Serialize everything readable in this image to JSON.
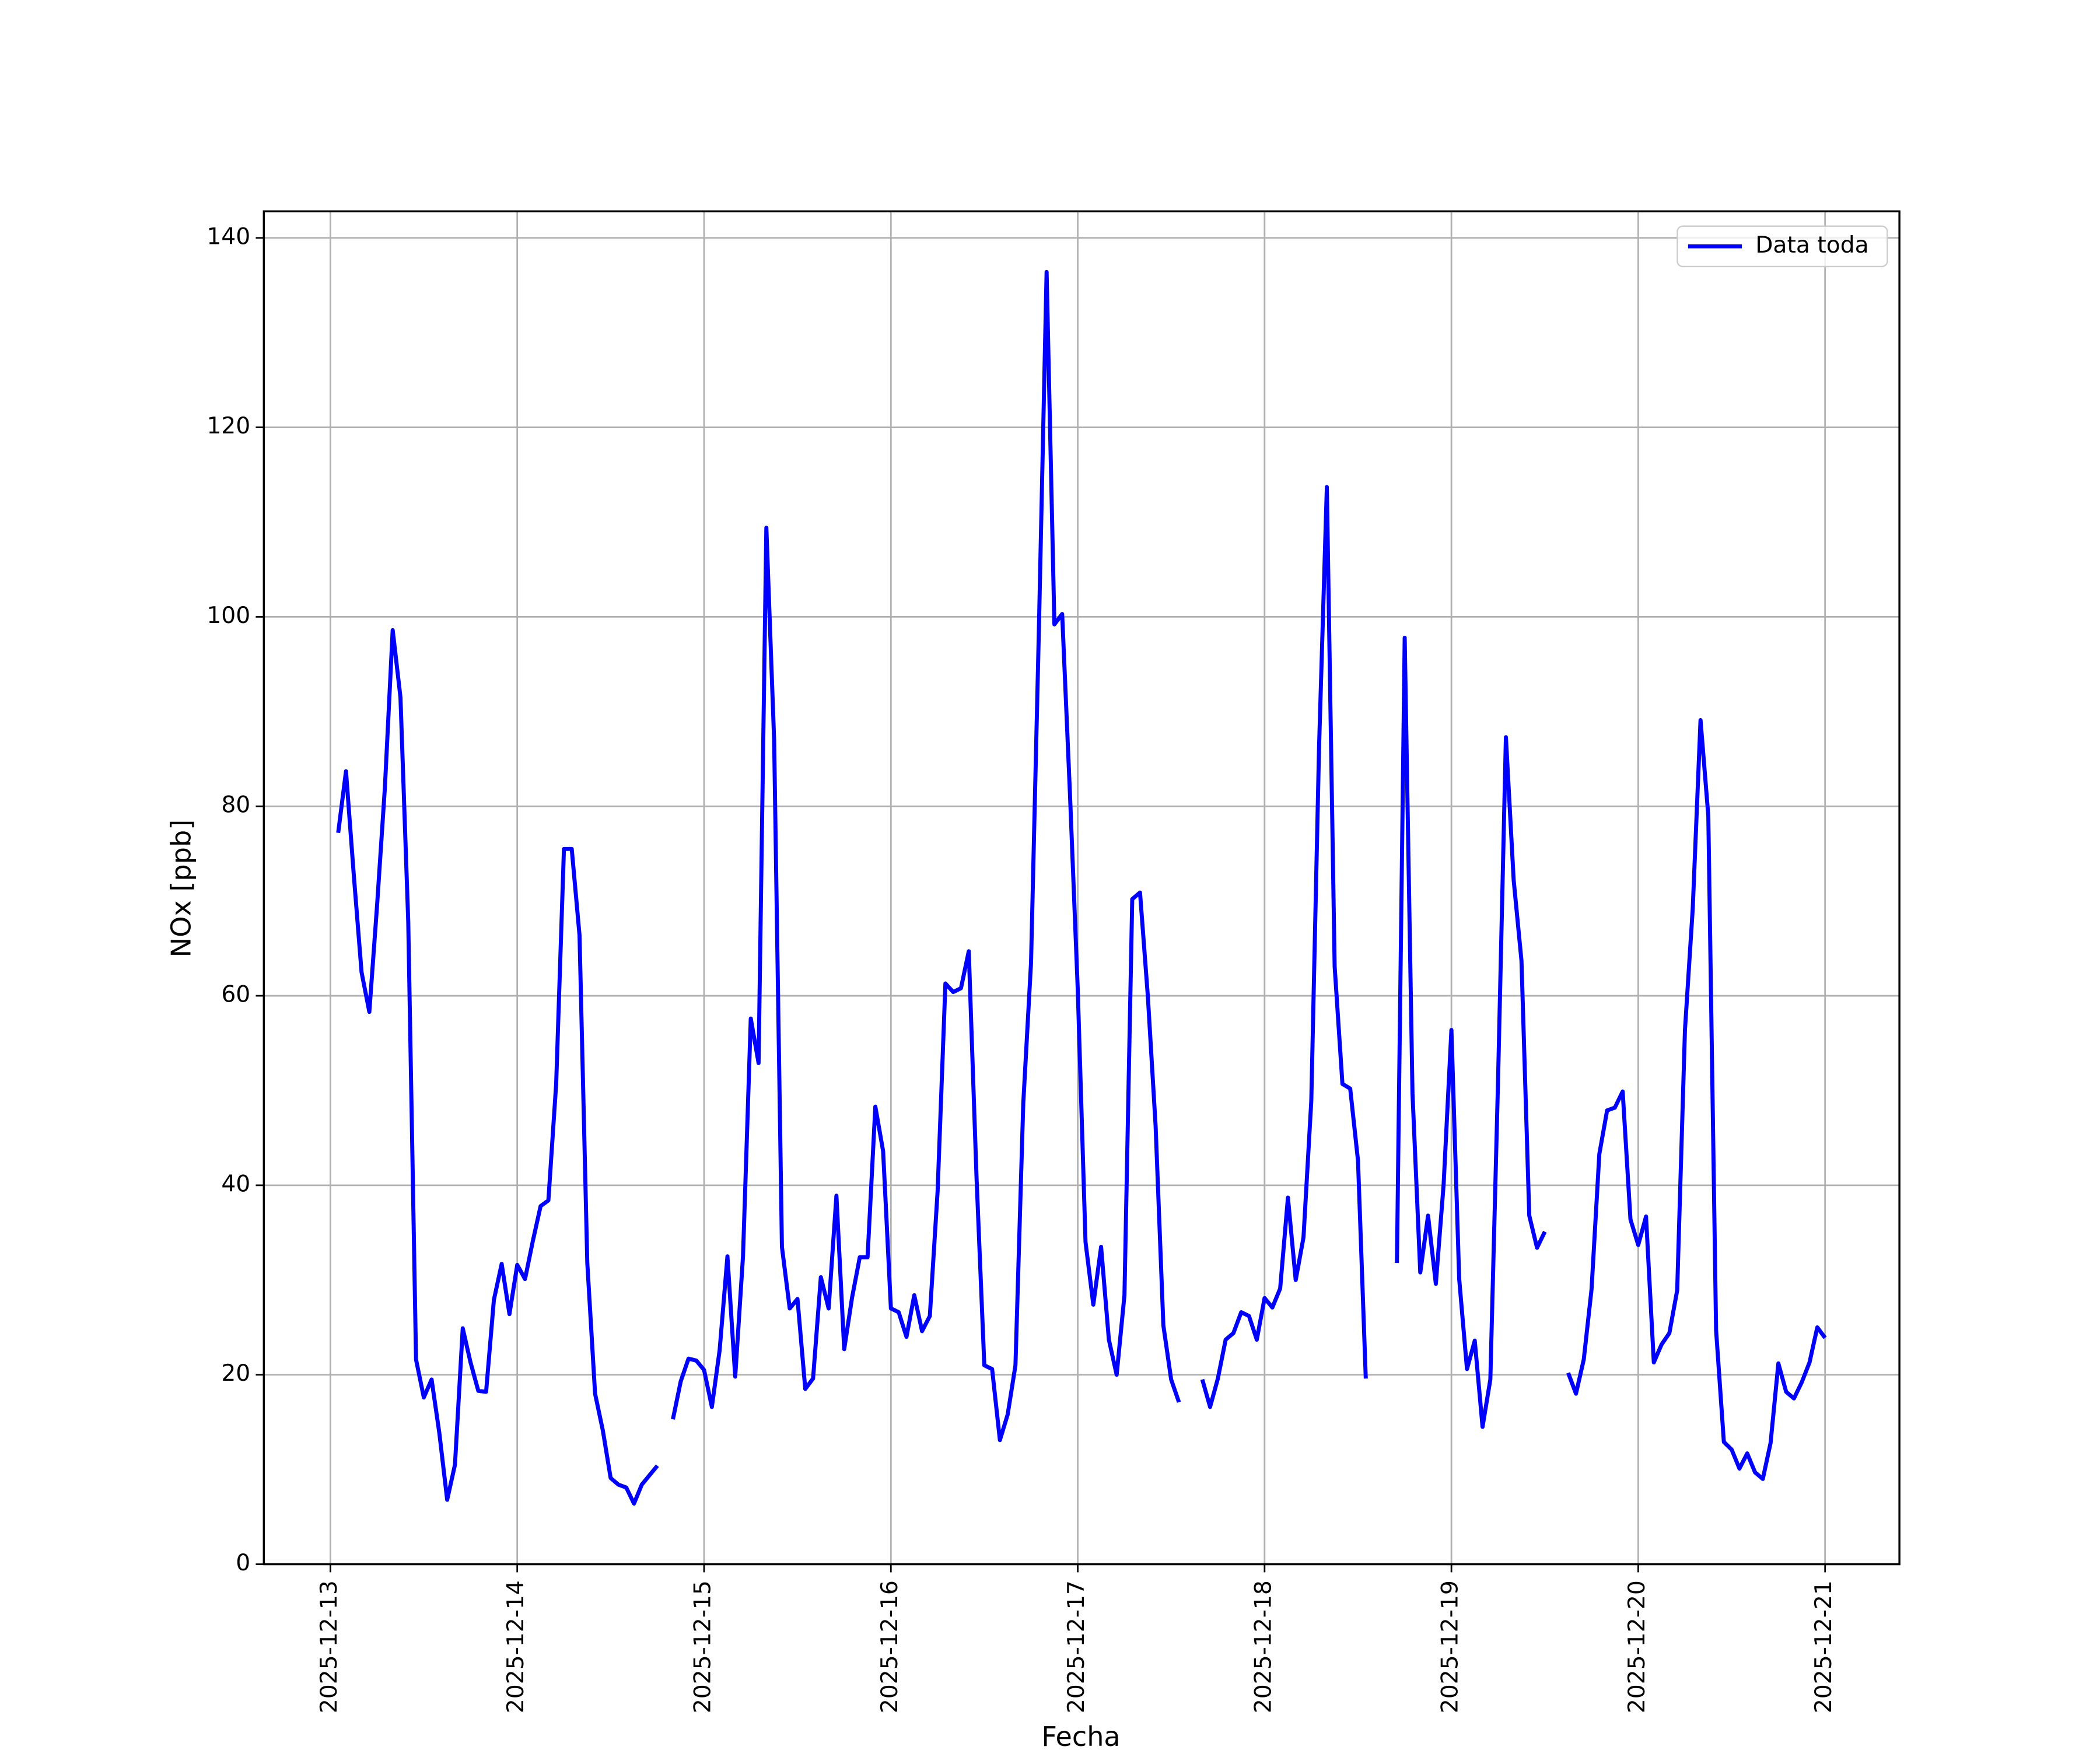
{
  "chart_data": {
    "type": "line",
    "xlabel": "Fecha",
    "ylabel": "NOx [ppb]",
    "x": [
      "2025-12-13 01:00",
      "2025-12-13 02:00",
      "2025-12-13 03:00",
      "2025-12-13 04:00",
      "2025-12-13 05:00",
      "2025-12-13 06:00",
      "2025-12-13 07:00",
      "2025-12-13 08:00",
      "2025-12-13 09:00",
      "2025-12-13 10:00",
      "2025-12-13 11:00",
      "2025-12-13 12:00",
      "2025-12-13 13:00",
      "2025-12-13 14:00",
      "2025-12-13 15:00",
      "2025-12-13 16:00",
      "2025-12-13 17:00",
      "2025-12-13 18:00",
      "2025-12-13 19:00",
      "2025-12-13 20:00",
      "2025-12-13 21:00",
      "2025-12-13 22:00",
      "2025-12-13 23:00",
      "2025-12-14 00:00",
      "2025-12-14 01:00",
      "2025-12-14 02:00",
      "2025-12-14 03:00",
      "2025-12-14 04:00",
      "2025-12-14 05:00",
      "2025-12-14 06:00",
      "2025-12-14 07:00",
      "2025-12-14 08:00",
      "2025-12-14 09:00",
      "2025-12-14 10:00",
      "2025-12-14 11:00",
      "2025-12-14 12:00",
      "2025-12-14 13:00",
      "2025-12-14 14:00",
      "2025-12-14 15:00",
      "2025-12-14 16:00",
      "2025-12-14 17:00",
      "2025-12-14 18:00",
      "2025-12-14 19:00",
      "2025-12-14 20:00",
      "2025-12-14 21:00",
      "2025-12-14 22:00",
      "2025-12-14 23:00",
      "2025-12-15 00:00",
      "2025-12-15 01:00",
      "2025-12-15 02:00",
      "2025-12-15 03:00",
      "2025-12-15 04:00",
      "2025-12-15 05:00",
      "2025-12-15 06:00",
      "2025-12-15 07:00",
      "2025-12-15 08:00",
      "2025-12-15 09:00",
      "2025-12-15 10:00",
      "2025-12-15 11:00",
      "2025-12-15 12:00",
      "2025-12-15 13:00",
      "2025-12-15 14:00",
      "2025-12-15 15:00",
      "2025-12-15 16:00",
      "2025-12-15 17:00",
      "2025-12-15 18:00",
      "2025-12-15 19:00",
      "2025-12-15 20:00",
      "2025-12-15 21:00",
      "2025-12-15 22:00",
      "2025-12-15 23:00",
      "2025-12-16 00:00",
      "2025-12-16 01:00",
      "2025-12-16 02:00",
      "2025-12-16 03:00",
      "2025-12-16 04:00",
      "2025-12-16 05:00",
      "2025-12-16 06:00",
      "2025-12-16 07:00",
      "2025-12-16 08:00",
      "2025-12-16 09:00",
      "2025-12-16 10:00",
      "2025-12-16 11:00",
      "2025-12-16 12:00",
      "2025-12-16 13:00",
      "2025-12-16 14:00",
      "2025-12-16 15:00",
      "2025-12-16 16:00",
      "2025-12-16 17:00",
      "2025-12-16 18:00",
      "2025-12-16 19:00",
      "2025-12-16 20:00",
      "2025-12-16 21:00",
      "2025-12-16 22:00",
      "2025-12-16 23:00",
      "2025-12-17 00:00",
      "2025-12-17 01:00",
      "2025-12-17 02:00",
      "2025-12-17 03:00",
      "2025-12-17 04:00",
      "2025-12-17 05:00",
      "2025-12-17 06:00",
      "2025-12-17 07:00",
      "2025-12-17 08:00",
      "2025-12-17 09:00",
      "2025-12-17 10:00",
      "2025-12-17 11:00",
      "2025-12-17 12:00",
      "2025-12-17 13:00",
      "2025-12-17 14:00",
      "2025-12-17 15:00",
      "2025-12-17 16:00",
      "2025-12-17 17:00",
      "2025-12-17 18:00",
      "2025-12-17 19:00",
      "2025-12-17 20:00",
      "2025-12-17 21:00",
      "2025-12-17 22:00",
      "2025-12-17 23:00",
      "2025-12-18 00:00",
      "2025-12-18 01:00",
      "2025-12-18 02:00",
      "2025-12-18 03:00",
      "2025-12-18 04:00",
      "2025-12-18 05:00",
      "2025-12-18 06:00",
      "2025-12-18 07:00",
      "2025-12-18 08:00",
      "2025-12-18 09:00",
      "2025-12-18 10:00",
      "2025-12-18 11:00",
      "2025-12-18 12:00",
      "2025-12-18 13:00",
      "2025-12-18 14:00",
      "2025-12-18 15:00",
      "2025-12-18 16:00",
      "2025-12-18 17:00",
      "2025-12-18 18:00",
      "2025-12-18 19:00",
      "2025-12-18 20:00",
      "2025-12-18 21:00",
      "2025-12-18 22:00",
      "2025-12-18 23:00",
      "2025-12-19 00:00",
      "2025-12-19 01:00",
      "2025-12-19 02:00",
      "2025-12-19 03:00",
      "2025-12-19 04:00",
      "2025-12-19 05:00",
      "2025-12-19 06:00",
      "2025-12-19 07:00",
      "2025-12-19 08:00",
      "2025-12-19 09:00",
      "2025-12-19 10:00",
      "2025-12-19 11:00",
      "2025-12-19 12:00",
      "2025-12-19 13:00",
      "2025-12-19 14:00",
      "2025-12-19 15:00",
      "2025-12-19 16:00",
      "2025-12-19 17:00",
      "2025-12-19 18:00",
      "2025-12-19 19:00",
      "2025-12-19 20:00",
      "2025-12-19 21:00",
      "2025-12-19 22:00",
      "2025-12-19 23:00",
      "2025-12-20 00:00",
      "2025-12-20 01:00",
      "2025-12-20 02:00",
      "2025-12-20 03:00",
      "2025-12-20 04:00",
      "2025-12-20 05:00",
      "2025-12-20 06:00",
      "2025-12-20 07:00",
      "2025-12-20 08:00",
      "2025-12-20 09:00",
      "2025-12-20 10:00",
      "2025-12-20 11:00",
      "2025-12-20 12:00",
      "2025-12-20 13:00",
      "2025-12-20 14:00",
      "2025-12-20 15:00",
      "2025-12-20 16:00",
      "2025-12-20 17:00",
      "2025-12-20 18:00",
      "2025-12-20 19:00",
      "2025-12-20 20:00",
      "2025-12-20 21:00",
      "2025-12-20 22:00",
      "2025-12-20 23:00",
      "2025-12-21 00:00"
    ],
    "series": [
      {
        "name": "Data toda",
        "color": "#0000ff",
        "values": [
          77.2,
          83.7,
          72.8,
          62.5,
          58.3,
          69.6,
          82,
          98.6,
          91.5,
          67.8,
          21.6,
          17.6,
          19.5,
          13.8,
          6.8,
          10.5,
          24.9,
          21.3,
          18.3,
          18.2,
          27.9,
          31.7,
          26.4,
          31.6,
          30.1,
          34.1,
          37.8,
          38.4,
          50.7,
          75.5,
          75.5,
          66.4,
          31.8,
          18,
          14.1,
          9.1,
          8.4,
          8.1,
          6.4,
          8.4,
          9.4,
          10.4,
          null,
          15.3,
          19.3,
          21.7,
          21.5,
          20.5,
          16.6,
          22.6,
          32.5,
          19.8,
          32.5,
          57.6,
          52.9,
          109.4,
          87,
          33.5,
          27,
          28,
          18.5,
          19.6,
          30.3,
          27,
          38.9,
          22.7,
          28.1,
          32.4,
          32.4,
          48.3,
          43.6,
          27,
          26.6,
          24,
          28.4,
          24.6,
          26.2,
          39.4,
          61.3,
          60.4,
          60.8,
          64.7,
          40.8,
          21,
          20.6,
          13.1,
          15.8,
          21,
          48.6,
          63.5,
          98.3,
          136.4,
          99.2,
          100.3,
          81.3,
          60.7,
          34,
          27.4,
          33.5,
          23.7,
          20,
          28.4,
          70.2,
          70.9,
          60,
          46.3,
          25.2,
          19.5,
          17.1,
          null,
          null,
          19.5,
          16.6,
          19.6,
          23.7,
          24.4,
          26.6,
          26.2,
          23.7,
          28.1,
          27.1,
          29.1,
          38.7,
          30,
          34.5,
          48.9,
          86.3,
          113.7,
          63.1,
          50.7,
          50.2,
          42.6,
          19.6,
          null,
          null,
          null,
          31.8,
          97.8,
          49.7,
          30.8,
          36.8,
          29.6,
          40.1,
          56.4,
          30.1,
          20.6,
          23.6,
          14.5,
          19.5,
          51.4,
          87.3,
          72.2,
          63.7,
          36.8,
          33.4,
          35.1,
          null,
          null,
          20.2,
          18,
          21.6,
          29,
          43.3,
          47.9,
          48.2,
          49.9,
          36.4,
          33.7,
          36.7,
          21.3,
          23.2,
          24.4,
          28.9,
          56.4,
          69.2,
          89.1,
          79,
          24.7,
          12.9,
          12.1,
          10.1,
          11.7,
          9.7,
          9,
          12.8,
          21.2,
          18.2,
          17.5,
          19.2,
          21.3,
          25,
          23.9
        ]
      }
    ],
    "xlim": [
      "2025-12-12 15:27",
      "2025-12-21 09:33"
    ],
    "xticks": [
      "2025-12-13",
      "2025-12-14",
      "2025-12-15",
      "2025-12-16",
      "2025-12-17",
      "2025-12-18",
      "2025-12-19",
      "2025-12-20",
      "2025-12-21"
    ],
    "ylim": [
      0,
      142.8
    ],
    "yticks": [
      0,
      20,
      40,
      60,
      80,
      100,
      120,
      140
    ],
    "grid": true,
    "legend": "upper right"
  }
}
